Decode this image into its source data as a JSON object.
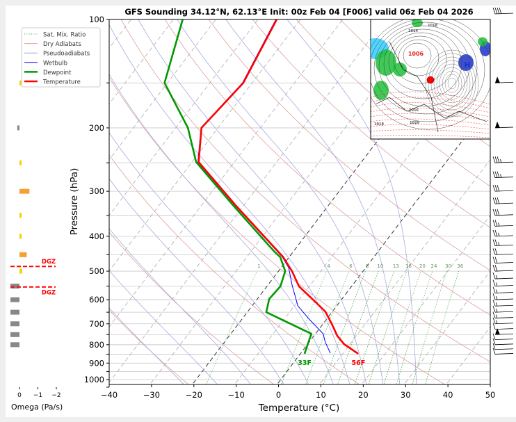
{
  "chart_data": {
    "type": "line",
    "title": "GFS Sounding 34.12°N, 62.13°E Init: 00z Feb 04 [F006] valid 06z Feb 04 2026",
    "xlabel": "Temperature (°C)",
    "ylabel": "Pressure (hPa)",
    "xlim": [
      -40,
      50
    ],
    "ylim": [
      1050,
      100
    ],
    "xticks": [
      "−40",
      "−30",
      "−20",
      "−10",
      "0",
      "10",
      "20",
      "30",
      "40",
      "50"
    ],
    "xtick_values": [
      -40,
      -30,
      -20,
      -10,
      0,
      10,
      20,
      30,
      40,
      50
    ],
    "yticks": [
      "100",
      "200",
      "300",
      "400",
      "500",
      "600",
      "700",
      "800",
      "900",
      "1000"
    ],
    "ytick_values": [
      100,
      200,
      300,
      400,
      500,
      600,
      700,
      800,
      900,
      1000
    ],
    "grid": true,
    "legend_position": "top-left",
    "legend": [
      {
        "label": "Sat. Mix. Ratio",
        "color": "#4caf50",
        "style": "dotted"
      },
      {
        "label": "Dry Adiabats",
        "color": "#e8a0a0",
        "style": "solid"
      },
      {
        "label": "Pseudoadiabats",
        "color": "#a0a0e0",
        "style": "solid"
      },
      {
        "label": "Wetbulb",
        "color": "#0000ff",
        "style": "solid"
      },
      {
        "label": "Dewpoint",
        "color": "#009900",
        "style": "thick"
      },
      {
        "label": "Temperature",
        "color": "#ff0000",
        "style": "thick"
      }
    ],
    "series": [
      {
        "name": "Temperature",
        "color": "#ff0000",
        "width": 2.6,
        "points": [
          [
            100,
            -65.6
          ],
          [
            150,
            -62.1
          ],
          [
            200,
            -63.9
          ],
          [
            249,
            -58.4
          ],
          [
            331,
            -41.4
          ],
          [
            441,
            -23.6
          ],
          [
            457,
            -21.4
          ],
          [
            500,
            -16.8
          ],
          [
            551,
            -12.4
          ],
          [
            592,
            -7.6
          ],
          [
            647,
            -1.7
          ],
          [
            698,
            1.9
          ],
          [
            756,
            5.5
          ],
          [
            797,
            8.6
          ],
          [
            848,
            13.7
          ]
        ]
      },
      {
        "name": "Dewpoint",
        "color": "#009900",
        "width": 2.6,
        "points": [
          [
            100,
            -87.8
          ],
          [
            150,
            -80.7
          ],
          [
            200,
            -67.1
          ],
          [
            249,
            -59.0
          ],
          [
            331,
            -42.0
          ],
          [
            441,
            -24.5
          ],
          [
            457,
            -22.1
          ],
          [
            500,
            -18.4
          ],
          [
            551,
            -16.8
          ],
          [
            597,
            -17.2
          ],
          [
            650,
            -15.5
          ],
          [
            746,
            -1.0
          ],
          [
            848,
            1.0
          ]
        ]
      },
      {
        "name": "Wetbulb",
        "color": "#0000ff",
        "width": 1,
        "points": [
          [
            100,
            -65.8
          ],
          [
            150,
            -62.3
          ],
          [
            200,
            -64.0
          ],
          [
            249,
            -58.6
          ],
          [
            331,
            -41.6
          ],
          [
            441,
            -23.8
          ],
          [
            457,
            -21.6
          ],
          [
            489,
            -18.2
          ],
          [
            546,
            -14.3
          ],
          [
            624,
            -9.2
          ],
          [
            682,
            -3.9
          ],
          [
            746,
            1.8
          ],
          [
            787,
            3.8
          ],
          [
            845,
            7.0
          ]
        ]
      }
    ],
    "surface_labels": {
      "temperature": "56F",
      "dewpoint": "33F",
      "temperature_c": 13.3,
      "dewpoint_c": 0.6,
      "pressure": 855
    },
    "isotherms": [
      -120,
      -110,
      -100,
      -90,
      -80,
      -70,
      -60,
      -50,
      -40,
      -30,
      -20,
      -10,
      0,
      10,
      20,
      30,
      40,
      50
    ],
    "highlight_isotherms": [
      -20,
      0
    ],
    "dry_adiabats_k": [
      230,
      250,
      270,
      290,
      310,
      330,
      350,
      370,
      390,
      410,
      430,
      450,
      470
    ],
    "moist_adiabats_c": [
      -24,
      -16,
      -8,
      0,
      6,
      12,
      16,
      20,
      24,
      28,
      32
    ],
    "mixing_ratios": [
      1,
      4,
      6,
      8,
      10,
      13,
      16,
      20,
      24,
      30,
      36
    ],
    "mixing_ratio_labels": [
      "1",
      "4",
      "6",
      "8",
      "10",
      "13",
      "16",
      "20",
      "24",
      "30",
      "36"
    ],
    "mixing_ratio_label_pressure": 500,
    "isobars": [
      100,
      150,
      200,
      250,
      300,
      350,
      400,
      450,
      500,
      550,
      600,
      650,
      700,
      750,
      800,
      850,
      900,
      950,
      1000
    ],
    "omega": {
      "xlabel": "Omega (Pa/s)",
      "ticks": [
        "0",
        "−1",
        "−2"
      ],
      "tick_values": [
        0,
        -1,
        -2
      ],
      "levels": [
        [
          150,
          -0.1
        ],
        [
          200,
          0.12
        ],
        [
          250,
          -0.1
        ],
        [
          300,
          -0.55
        ],
        [
          350,
          -0.08
        ],
        [
          400,
          -0.08
        ],
        [
          450,
          -0.4
        ],
        [
          500,
          -0.15
        ],
        [
          550,
          0.5
        ],
        [
          600,
          0.5
        ],
        [
          650,
          0.5
        ],
        [
          700,
          0.5
        ],
        [
          750,
          0.5
        ],
        [
          800,
          0.5
        ]
      ],
      "colors": {
        "sinking": "#888888",
        "weak_rising": "#f5d000",
        "rising": "#f5a030"
      },
      "dgz_pressures": [
        485,
        553
      ],
      "dgz_label": "DGZ",
      "dgz_color": "#ff0000"
    },
    "winds": [
      [
        100,
        40
      ],
      [
        150,
        50
      ],
      [
        200,
        50
      ],
      [
        250,
        35
      ],
      [
        275,
        35
      ],
      [
        300,
        30
      ],
      [
        325,
        30
      ],
      [
        350,
        30
      ],
      [
        375,
        25
      ],
      [
        400,
        25
      ],
      [
        425,
        25
      ],
      [
        450,
        20
      ],
      [
        475,
        20
      ],
      [
        500,
        20
      ],
      [
        525,
        15
      ],
      [
        550,
        15
      ],
      [
        575,
        15
      ],
      [
        600,
        15
      ],
      [
        625,
        15
      ],
      [
        650,
        15
      ],
      [
        675,
        15
      ],
      [
        700,
        15
      ],
      [
        725,
        10
      ],
      [
        750,
        50
      ],
      [
        775,
        10
      ],
      [
        800,
        10
      ],
      [
        825,
        10
      ],
      [
        850,
        10
      ]
    ]
  },
  "inset_map": {
    "labels": [
      "1006",
      "H",
      "1014",
      "1018",
      "1020",
      "1016",
      "1018"
    ]
  }
}
